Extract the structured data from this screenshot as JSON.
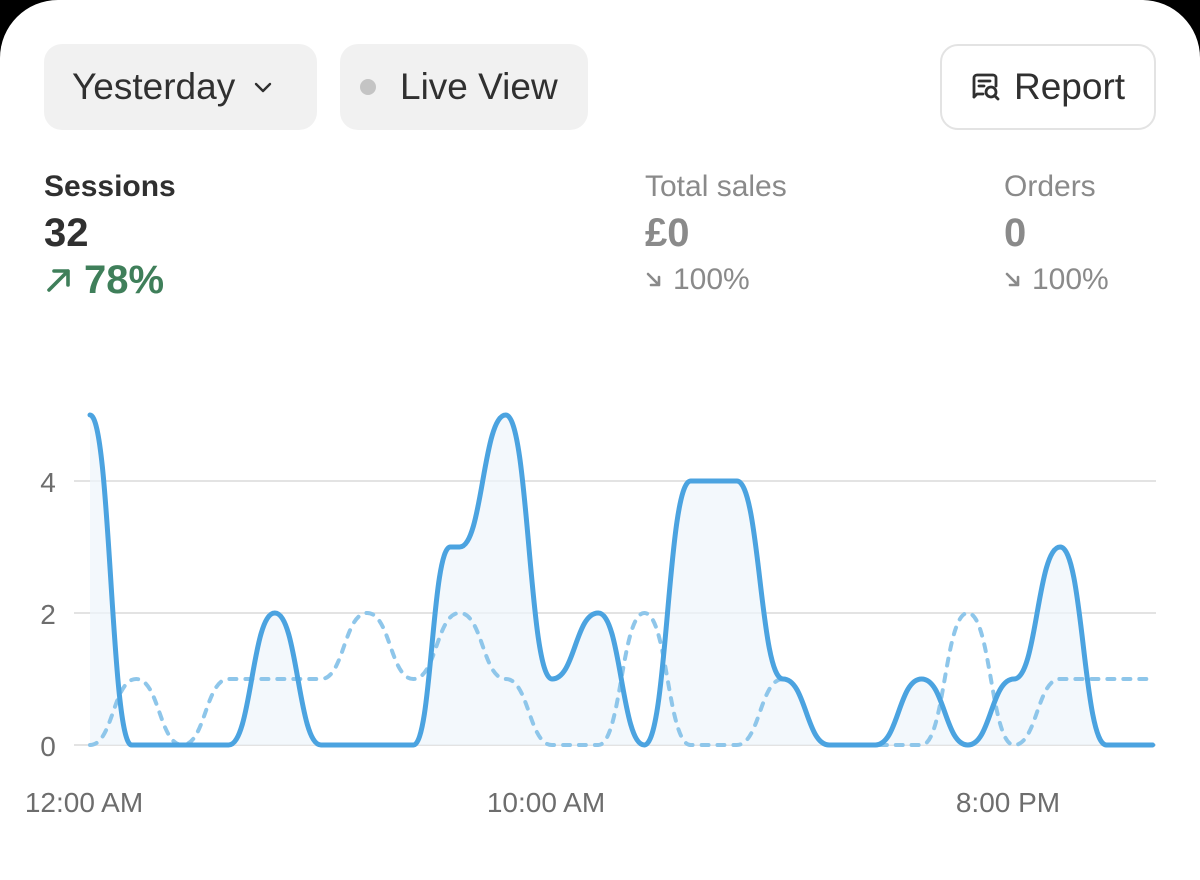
{
  "toolbar": {
    "date_label": "Yesterday",
    "live_label": "Live View",
    "report_label": "Report"
  },
  "metrics": {
    "sessions": {
      "label": "Sessions",
      "value": "32",
      "delta": "78%",
      "direction": "up"
    },
    "total_sales": {
      "label": "Total sales",
      "value": "£0",
      "delta": "100%",
      "direction": "down"
    },
    "orders": {
      "label": "Orders",
      "value": "0",
      "delta": "100%",
      "direction": "down"
    }
  },
  "colors": {
    "primary_line": "#4ba3e0",
    "comparison_line": "#8ec6ea",
    "positive": "#3f7f5a",
    "muted": "#8a8a8a"
  },
  "chart_data": {
    "type": "line",
    "ylim": [
      0,
      5
    ],
    "yticks": [
      "0",
      "2",
      "4"
    ],
    "xtick_labels": [
      {
        "x": 0,
        "label": "12:00 AM"
      },
      {
        "x": 10,
        "label": "10:00 AM"
      },
      {
        "x": 20,
        "label": "8:00 PM"
      }
    ],
    "series": [
      {
        "style": "solid",
        "points": [
          [
            0,
            5
          ],
          [
            0.9,
            0
          ],
          [
            3,
            0
          ],
          [
            4,
            2
          ],
          [
            5,
            0
          ],
          [
            7,
            0
          ],
          [
            7.8,
            3
          ],
          [
            8,
            3
          ],
          [
            9,
            5
          ],
          [
            10,
            1
          ],
          [
            11,
            2
          ],
          [
            12,
            0
          ],
          [
            13,
            4
          ],
          [
            14,
            4
          ],
          [
            15,
            1
          ],
          [
            16,
            0
          ],
          [
            17,
            0
          ],
          [
            18,
            1
          ],
          [
            19,
            0
          ],
          [
            20,
            1
          ],
          [
            21,
            3
          ],
          [
            22,
            0
          ],
          [
            23,
            0
          ]
        ]
      },
      {
        "style": "dashed",
        "points": [
          [
            0,
            0
          ],
          [
            1,
            1
          ],
          [
            2,
            0
          ],
          [
            3,
            1
          ],
          [
            5,
            1
          ],
          [
            6,
            2
          ],
          [
            7,
            1
          ],
          [
            8,
            2
          ],
          [
            9,
            1
          ],
          [
            10,
            0
          ],
          [
            11,
            0
          ],
          [
            12,
            2
          ],
          [
            13,
            0
          ],
          [
            14,
            0
          ],
          [
            15,
            1
          ],
          [
            16,
            0
          ],
          [
            17,
            0
          ],
          [
            18,
            0
          ],
          [
            19,
            2
          ],
          [
            20,
            0
          ],
          [
            21,
            1
          ],
          [
            23,
            1
          ]
        ]
      }
    ]
  }
}
